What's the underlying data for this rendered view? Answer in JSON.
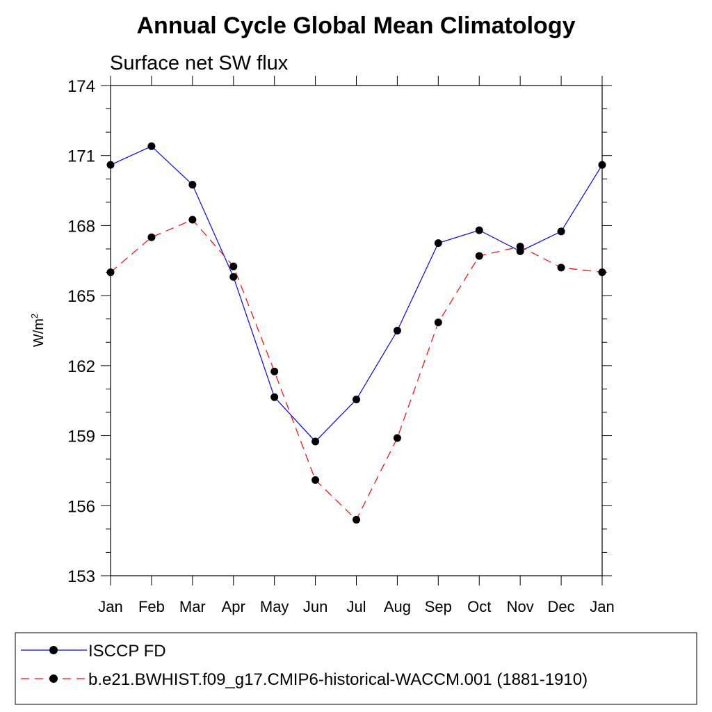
{
  "chart_data": {
    "type": "line",
    "title": "Annual Cycle Global Mean Climatology",
    "subtitle": "Surface net SW flux",
    "ylabel": "W/m",
    "ylabel_superscript": "2",
    "xlabel": "",
    "categories": [
      "Jan",
      "Feb",
      "Mar",
      "Apr",
      "May",
      "Jun",
      "Jul",
      "Aug",
      "Sep",
      "Oct",
      "Nov",
      "Dec",
      "Jan"
    ],
    "ylim": [
      153,
      174
    ],
    "yticks": [
      153,
      156,
      159,
      162,
      165,
      168,
      171,
      174
    ],
    "grid": false,
    "legend_placement": "bottom",
    "series": [
      {
        "name": "ISCCP FD",
        "color": "#0000ff",
        "dashed": false,
        "values": [
          170.6,
          171.4,
          169.75,
          165.8,
          160.65,
          158.75,
          160.55,
          163.5,
          167.25,
          167.8,
          166.9,
          167.75,
          170.6
        ]
      },
      {
        "name": "b.e21.BWHIST.f09_g17.CMIP6-historical-WACCM.001 (1881-1910)",
        "color": "#ff0000",
        "dashed": true,
        "values": [
          166.0,
          167.5,
          168.25,
          166.25,
          161.75,
          157.1,
          155.4,
          158.9,
          163.85,
          166.7,
          167.1,
          166.2,
          166.0
        ]
      }
    ]
  }
}
